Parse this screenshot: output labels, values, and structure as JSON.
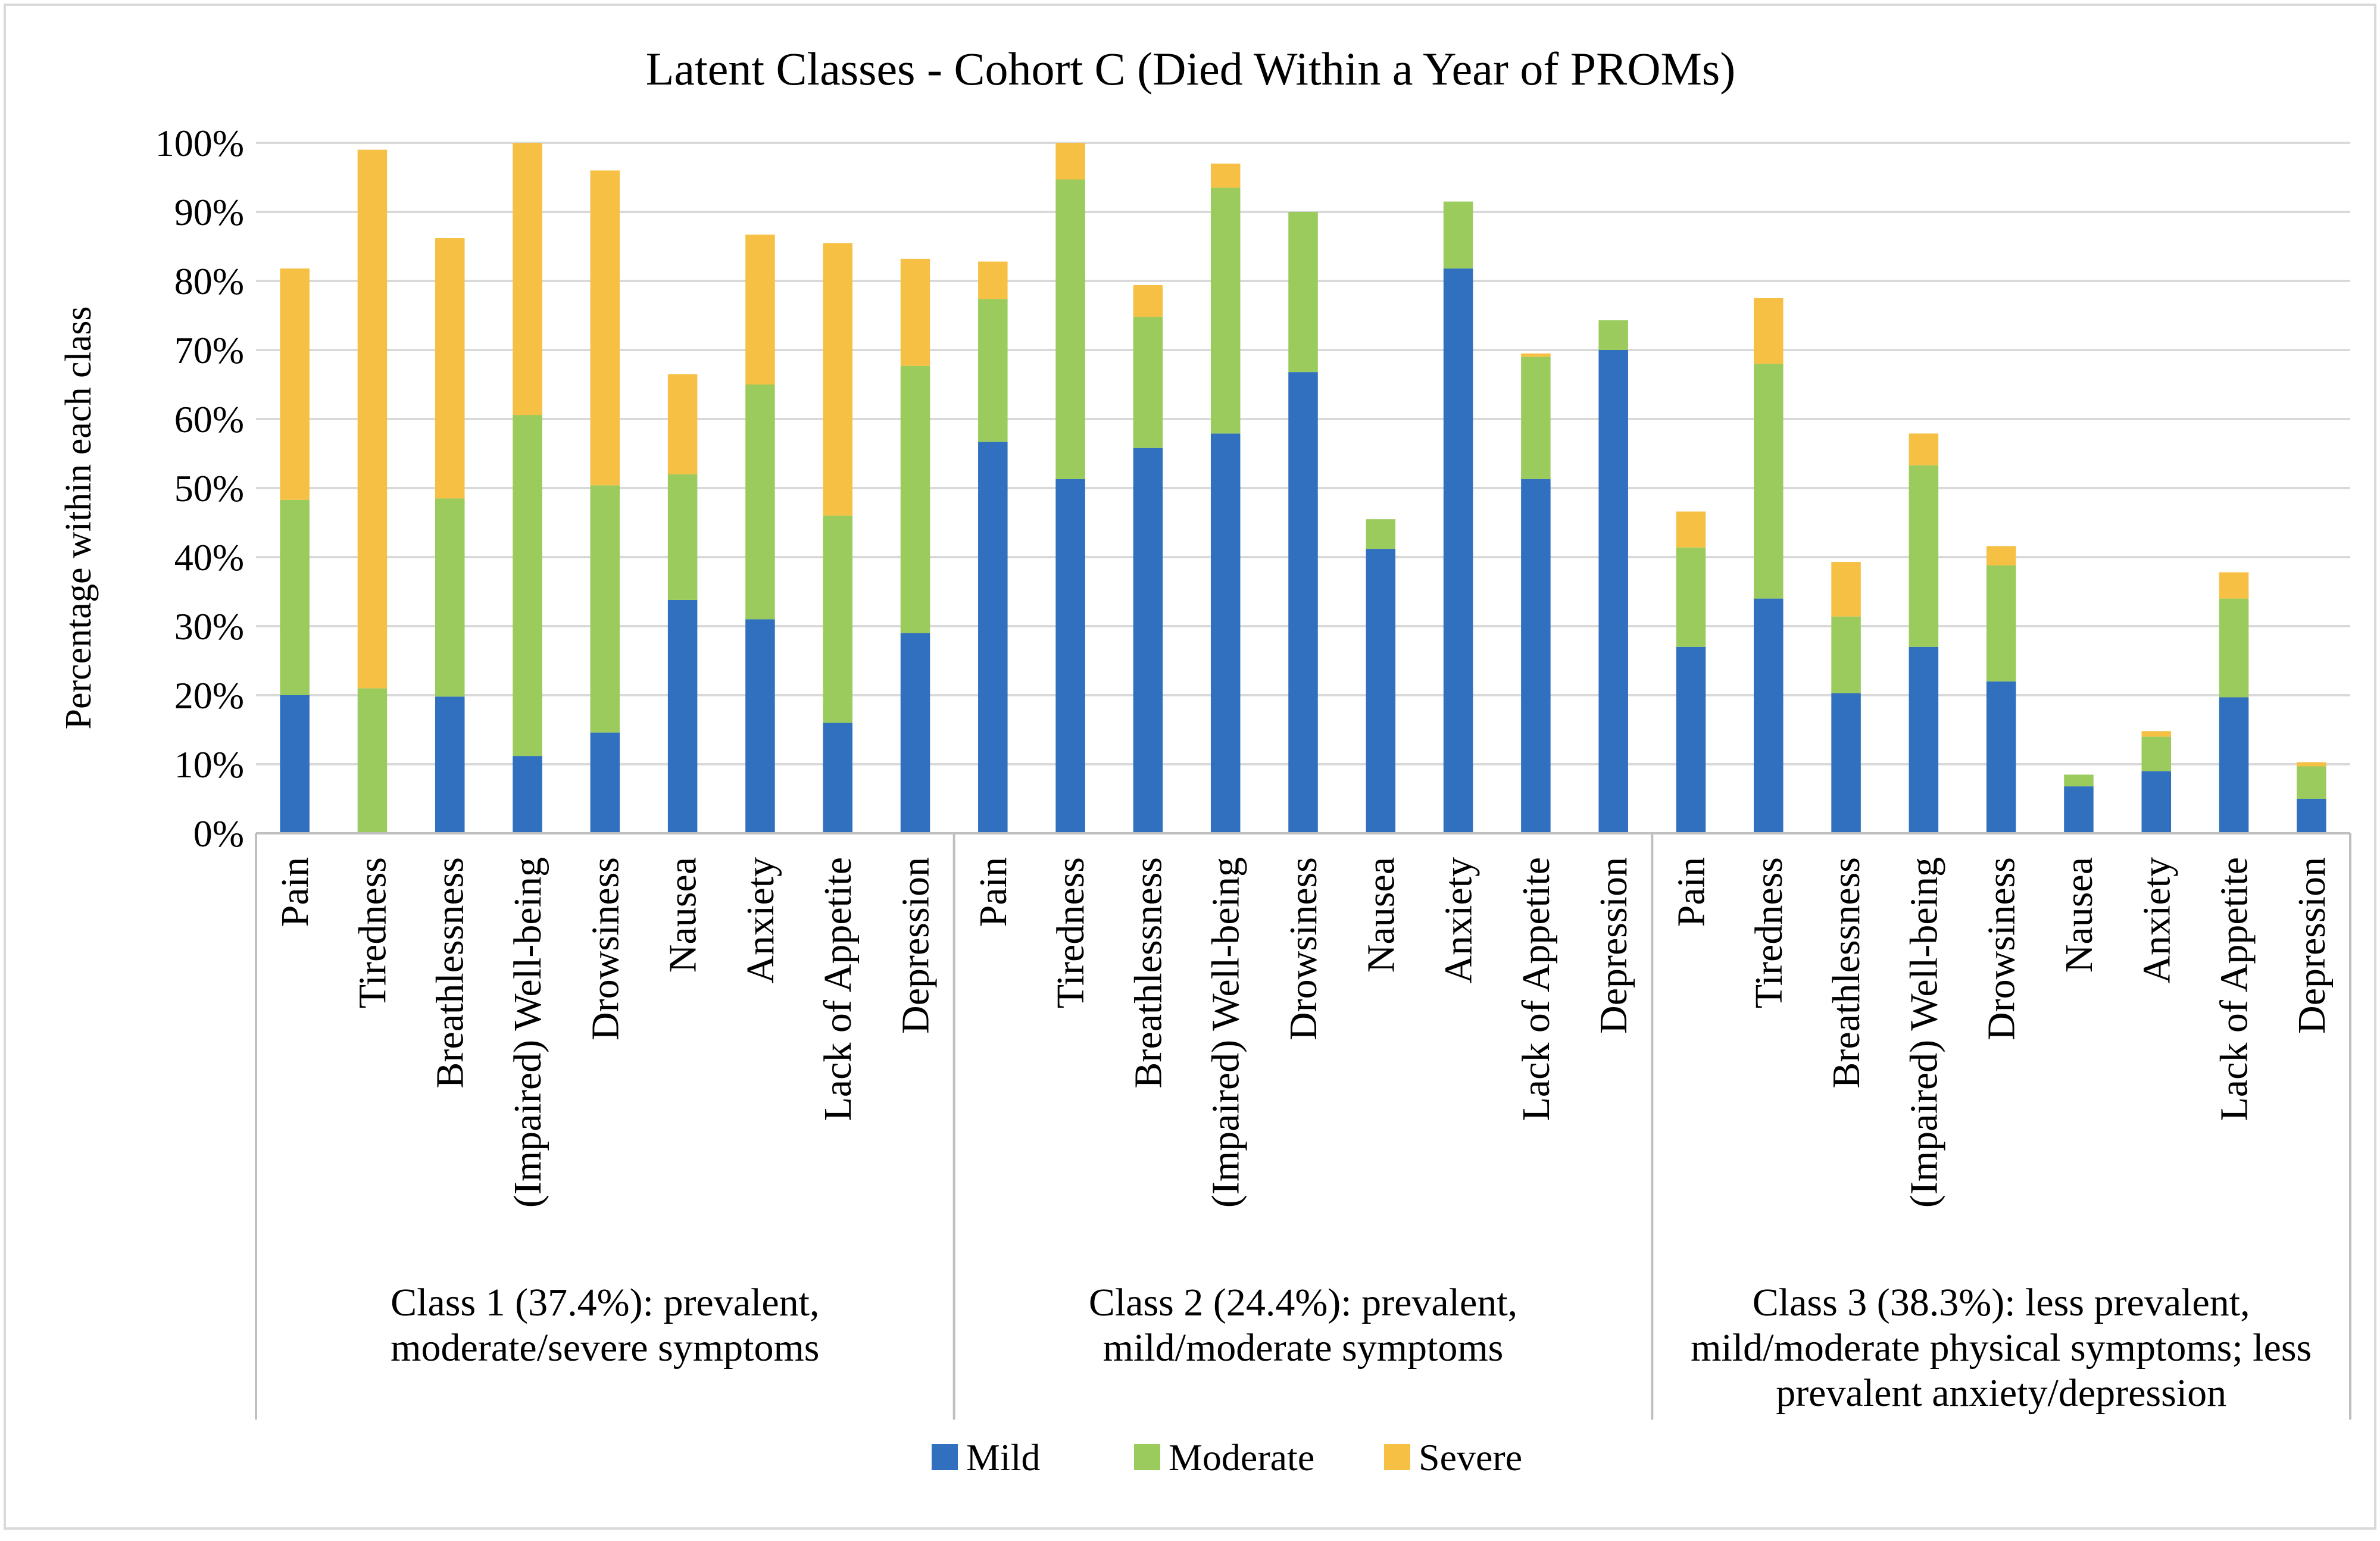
{
  "chart_data": {
    "type": "bar",
    "stacked": true,
    "title": "Latent Classes - Cohort C (Died Within a Year of PROMs)",
    "xlabel": "",
    "ylabel": "Percentage within each class",
    "ylim": [
      0,
      100
    ],
    "yticks": [
      "0%",
      "10%",
      "20%",
      "30%",
      "40%",
      "50%",
      "60%",
      "70%",
      "80%",
      "90%",
      "100%"
    ],
    "grid": true,
    "legend_position": "bottom",
    "groups": [
      {
        "label_lines": [
          "Class 1 (37.4%): prevalent,",
          "moderate/severe symptoms"
        ],
        "categories": [
          "Pain",
          "Tiredness",
          "Breathlessness",
          "(Impaired) Well-being",
          "Drowsiness",
          "Nausea",
          "Anxiety",
          "Lack of Appetite",
          "Depression"
        ],
        "series": [
          {
            "name": "Mild",
            "values": [
              20,
              0,
              19.8,
              11.2,
              14.6,
              33.8,
              31,
              16,
              29
            ]
          },
          {
            "name": "Moderate",
            "values": [
              28.3,
              21,
              28.7,
              49.4,
              35.8,
              18.2,
              34,
              30,
              38.7
            ]
          },
          {
            "name": "Severe",
            "values": [
              33.5,
              78,
              37.7,
              39.4,
              45.6,
              14.5,
              21.7,
              39.5,
              15.5
            ]
          }
        ]
      },
      {
        "label_lines": [
          "Class 2 (24.4%): prevalent,",
          "mild/moderate symptoms"
        ],
        "categories": [
          "Pain",
          "Tiredness",
          "Breathlessness",
          "(Impaired) Well-being",
          "Drowsiness",
          "Nausea",
          "Anxiety",
          "Lack of Appetite",
          "Depression"
        ],
        "series": [
          {
            "name": "Mild",
            "values": [
              56.7,
              51.3,
              55.8,
              57.9,
              66.8,
              41.2,
              81.8,
              51.3,
              70
            ]
          },
          {
            "name": "Moderate",
            "values": [
              20.7,
              43.4,
              19,
              35.6,
              23.2,
              4.3,
              9.7,
              17.7,
              4.3
            ]
          },
          {
            "name": "Severe",
            "values": [
              5.4,
              5.3,
              4.6,
              3.5,
              0,
              0,
              0,
              0.5,
              0
            ]
          }
        ]
      },
      {
        "label_lines": [
          "Class 3 (38.3%): less prevalent,",
          "mild/moderate physical symptoms; less",
          "prevalent anxiety/depression"
        ],
        "categories": [
          "Pain",
          "Tiredness",
          "Breathlessness",
          "(Impaired) Well-being",
          "Drowsiness",
          "Nausea",
          "Anxiety",
          "Lack of Appetite",
          "Depression"
        ],
        "series": [
          {
            "name": "Mild",
            "values": [
              27,
              34,
              20.3,
              27,
              22,
              6.8,
              9,
              19.7,
              5
            ]
          },
          {
            "name": "Moderate",
            "values": [
              14.4,
              34,
              11.1,
              26.3,
              16.8,
              1.7,
              5,
              14.3,
              4.7
            ]
          },
          {
            "name": "Severe",
            "values": [
              5.2,
              9.5,
              7.9,
              4.6,
              2.8,
              0,
              0.8,
              3.8,
              0.6
            ]
          }
        ]
      }
    ],
    "legend": [
      "Mild",
      "Moderate",
      "Severe"
    ],
    "colors": {
      "Mild": "#3070BE",
      "Moderate": "#9CCB5D",
      "Severe": "#F6C044"
    }
  }
}
